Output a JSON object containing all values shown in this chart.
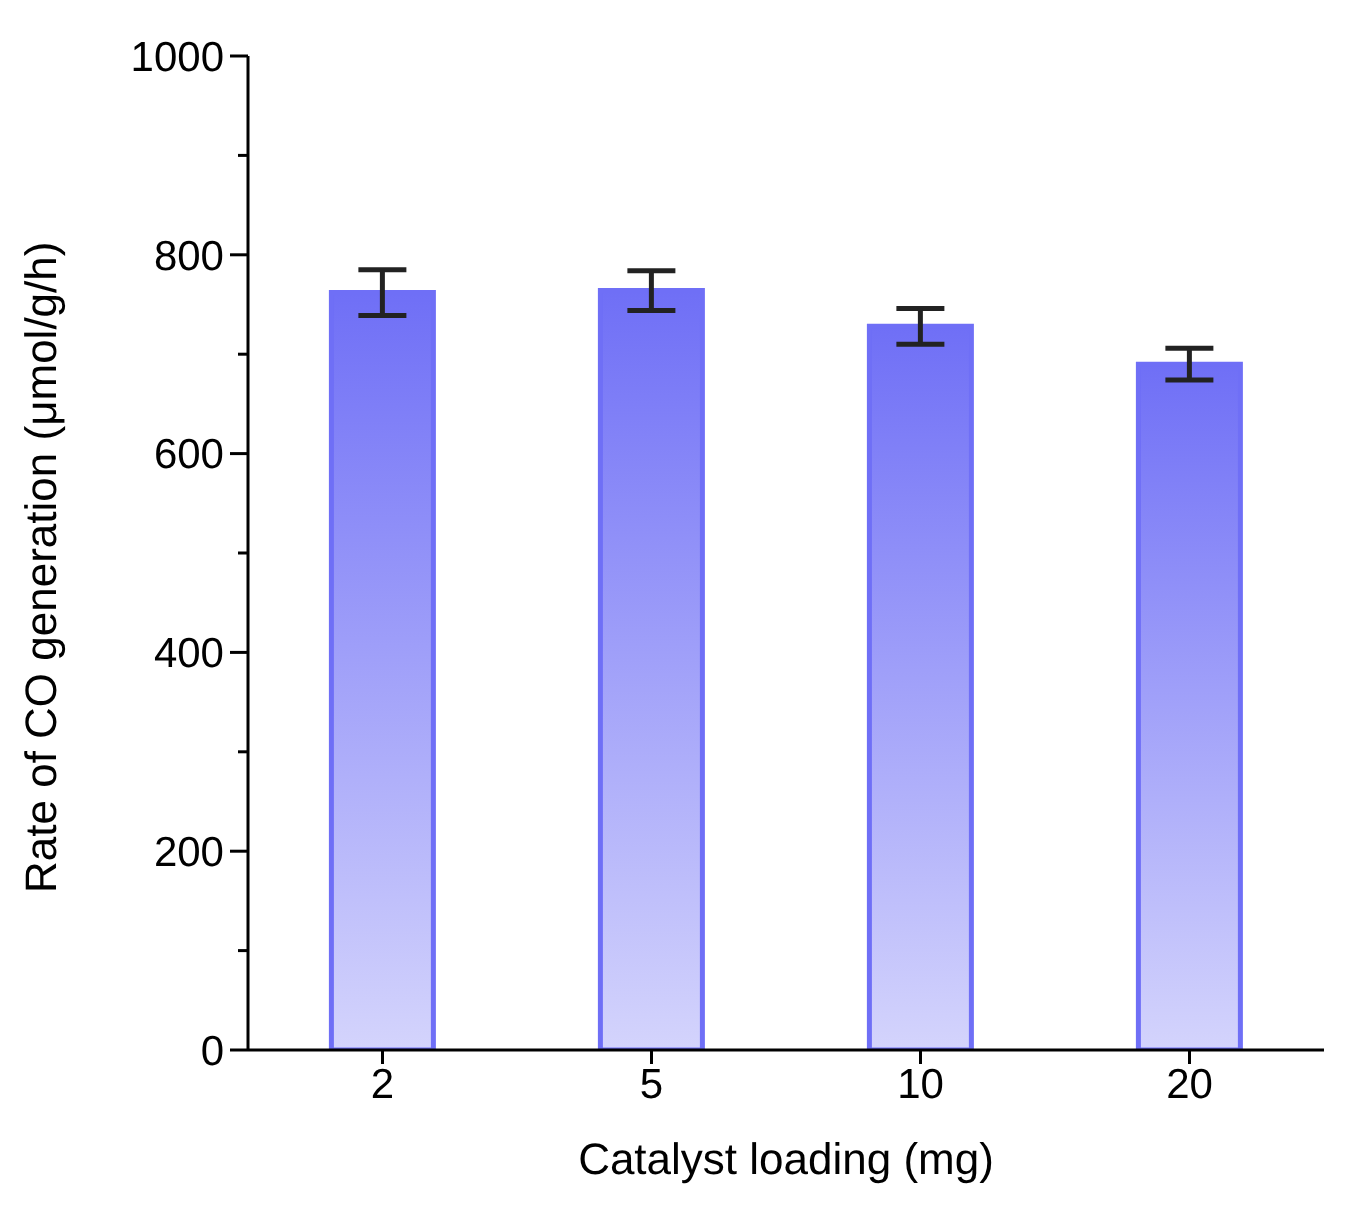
{
  "chart_data": {
    "type": "bar",
    "xlabel": "Catalyst loading (mg)",
    "ylabel": "Rate of CO generation (μmol/g/h)",
    "categories": [
      "2",
      "5",
      "10",
      "20"
    ],
    "values": [
      762,
      764,
      728,
      690
    ],
    "errors": [
      23,
      20,
      18,
      16
    ],
    "color": "#6f6ff6",
    "ylim": [
      0,
      1000
    ],
    "yticks": [
      0,
      {
        "value": 100,
        "label": null
      },
      200,
      {
        "value": 300,
        "label": null
      },
      400,
      {
        "value": 500,
        "label": null
      },
      600,
      {
        "value": 700,
        "label": null
      },
      800,
      {
        "value": 900,
        "label": null
      },
      1000
    ],
    "grid": false
  }
}
